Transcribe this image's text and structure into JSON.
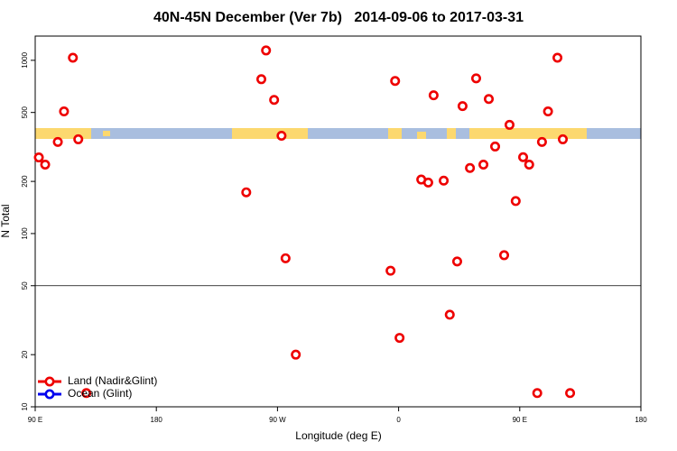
{
  "chart_data": {
    "type": "scatter",
    "title": "40N-45N December (Ver 7b)   2014-09-06 to 2017-03-31",
    "x_label": "Longitude (deg E)",
    "y_label": "N Total",
    "xlim": [
      90,
      540
    ],
    "xticks": [
      {
        "value": 90,
        "label": "90 E"
      },
      180,
      {
        "value": 270,
        "label": "90 W"
      },
      {
        "value": 360,
        "label": "0"
      },
      {
        "value": 450,
        "label": "90 E"
      },
      {
        "value": 540,
        "label": "180"
      }
    ],
    "ylim": [
      10,
      1380
    ],
    "yticks": [
      10,
      20,
      50,
      100,
      200,
      500,
      1000
    ],
    "log_y": true,
    "reference_line": 50,
    "legend": "bottom-left",
    "series": [
      {
        "name": "Land (Nadir&Glint)",
        "color": "#ee0000",
        "x": [
          92.7,
          97.4,
          106.8,
          111.4,
          118,
          122,
          128,
          246.8,
          258,
          261.5,
          267.5,
          273,
          276,
          283.6,
          354,
          357.4,
          360.7,
          376.8,
          382,
          386,
          393.5,
          398,
          403.5,
          407.5,
          413,
          417.6,
          423,
          427,
          431.7,
          438.4,
          442.4,
          447,
          452.5,
          457,
          463,
          466.5,
          471,
          478,
          482,
          487.4
        ],
        "values": [
          275,
          250,
          338,
          507,
          1035,
          350,
          12,
          173,
          778,
          1140,
          591,
          367,
          72,
          20,
          61,
          760,
          25,
          205,
          197,
          628,
          202,
          34,
          69,
          544,
          239,
          787,
          250,
          598,
          318,
          75,
          424,
          154,
          276,
          250,
          12,
          338,
          507,
          1035,
          350,
          12
        ]
      },
      {
        "name": "Ocean (Glint)",
        "color": "#0000ee",
        "x": [],
        "values": []
      }
    ]
  }
}
